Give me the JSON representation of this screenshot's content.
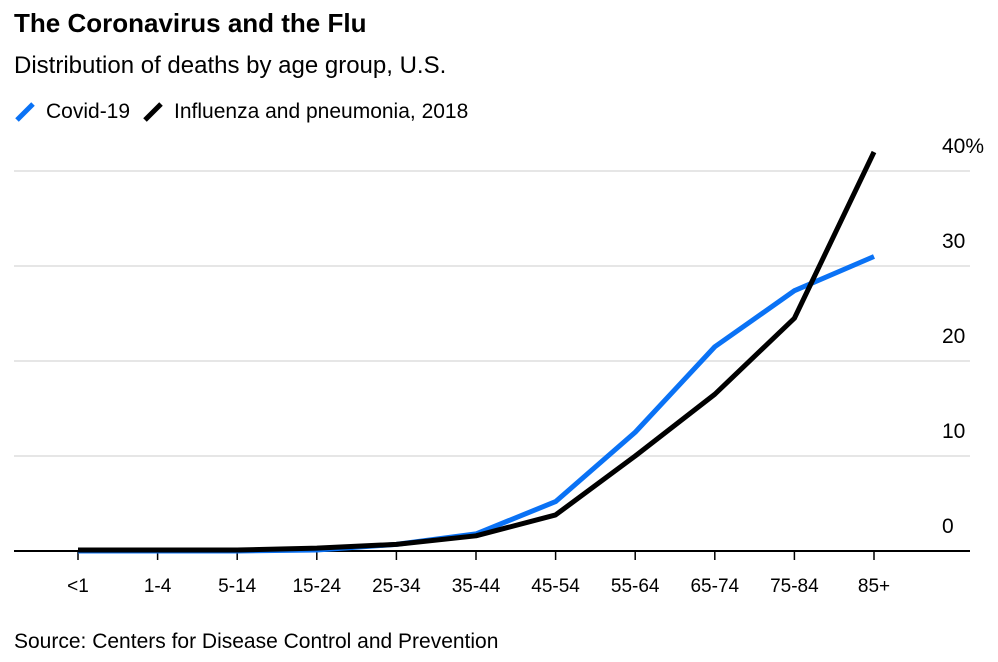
{
  "chart_data": {
    "type": "line",
    "title": "The Coronavirus and the Flu",
    "subtitle": "Distribution of deaths by age group, U.S.",
    "categories": [
      "<1",
      "1-4",
      "5-14",
      "15-24",
      "25-34",
      "35-44",
      "45-54",
      "55-64",
      "65-74",
      "75-84",
      "85+"
    ],
    "series": [
      {
        "name": "Covid-19",
        "color": "#0a72f5",
        "values": [
          0,
          0,
          0,
          0.1,
          0.7,
          1.8,
          5.2,
          12.5,
          21.5,
          27.4,
          31
        ]
      },
      {
        "name": "Influenza and pneumonia, 2018",
        "color": "#000000",
        "values": [
          0.1,
          0.1,
          0.1,
          0.3,
          0.7,
          1.6,
          3.8,
          10,
          16.5,
          24.5,
          42
        ]
      }
    ],
    "ylim": [
      0,
      40
    ],
    "yticks": [
      0,
      10,
      20,
      30,
      40
    ],
    "ytick_labels": [
      "0",
      "10",
      "20",
      "30",
      "40%"
    ],
    "grid": true,
    "legend": "top-left",
    "source": "Source: Centers for Disease Control and Prevention"
  }
}
